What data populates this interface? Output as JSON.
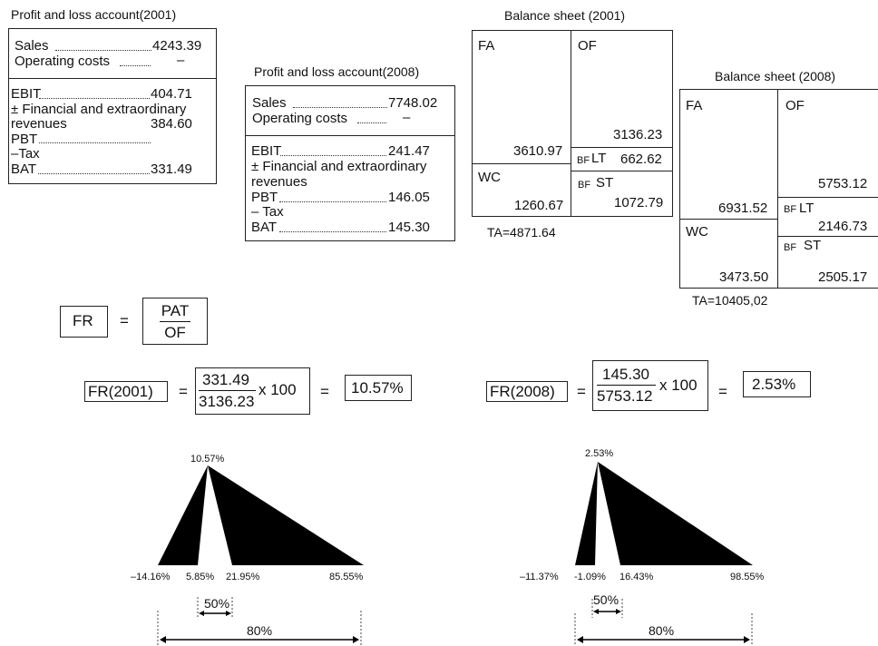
{
  "pl2001": {
    "title": "Profit and loss account(2001)",
    "sales_label": "Sales",
    "sales_value": "4243.39",
    "opcost_label": "Operating costs",
    "opcost_value": "–",
    "ebit_label": "EBIT",
    "ebit_value": "404.71",
    "fin_label_1": "± Financial and extraordinary",
    "fin_label_2": "revenues",
    "fin_value": "384.60",
    "pbt_label": "PBT",
    "tax_label": "–Tax",
    "bat_label": "BAT",
    "bat_value": "331.49"
  },
  "pl2008": {
    "title": "Profit and loss account(2008)",
    "sales_label": "Sales",
    "sales_value": "7748.02",
    "opcost_label": "Operating costs",
    "opcost_value": "–",
    "ebit_label": "EBIT",
    "ebit_value": "241.47",
    "fin_label_1": "± Financial and extraordinary",
    "fin_label_2": "revenues",
    "pbt_label": "PBT",
    "pbt_value": "146.05",
    "tax_label": "– Tax",
    "bat_label": "BAT",
    "bat_value": "145.30"
  },
  "bs2001": {
    "title": "Balance sheet (2001)",
    "fa_label": "FA",
    "fa_value": "3610.97",
    "of_label": "OF",
    "of_value": "3136.23",
    "lt_prefix": "BF",
    "lt_label": "LT",
    "lt_value": "662.62",
    "wc_label": "WC",
    "wc_value": "1260.67",
    "st_prefix": "BF",
    "st_label": "ST",
    "st_value": "1072.79",
    "total": "TA=4871.64"
  },
  "bs2008": {
    "title": "Balance sheet (2008)",
    "fa_label": "FA",
    "fa_value": "6931.52",
    "of_label": "OF",
    "of_value": "5753.12",
    "lt_prefix": "BF",
    "lt_label": "LT",
    "lt_value": "2146.73",
    "wc_label": "WC",
    "wc_value": "3473.50",
    "st_prefix": "BF",
    "st_label": "ST",
    "st_value": "2505.17",
    "total": "TA=10405,02"
  },
  "formula": {
    "lhs": "FR",
    "eq": "=",
    "num": "PAT",
    "den": "OF"
  },
  "calc2001": {
    "lhs": "FR(2001)",
    "eq1": "=",
    "num": "331.49",
    "den": "3136.23",
    "mult": "x 100",
    "eq2": "=",
    "result": "10.57%"
  },
  "calc2008": {
    "lhs": "FR(2008)",
    "eq1": "=",
    "num": "145.30",
    "den": "5753.12",
    "mult": "x 100",
    "eq2": "=",
    "result": "2.53%"
  },
  "tri2001": {
    "peak": "10.57%",
    "min": "–14.16%",
    "low": "5.85%",
    "high": "21.95%",
    "max": "85.55%",
    "band50": "50%",
    "band80": "80%",
    "values": {
      "peak": 10.57,
      "min": -14.16,
      "low": 5.85,
      "high": 21.95,
      "max": 85.55
    }
  },
  "tri2008": {
    "peak": "2.53%",
    "min": "–11.37%",
    "low": "-1.09%",
    "high": "16.43%",
    "max": "98.55%",
    "band50": "50%",
    "band80": "80%",
    "values": {
      "peak": 2.53,
      "min": -11.37,
      "low": -1.09,
      "high": 16.43,
      "max": 98.55
    }
  },
  "colors": {
    "fill": "#000000",
    "line": "#222222"
  }
}
